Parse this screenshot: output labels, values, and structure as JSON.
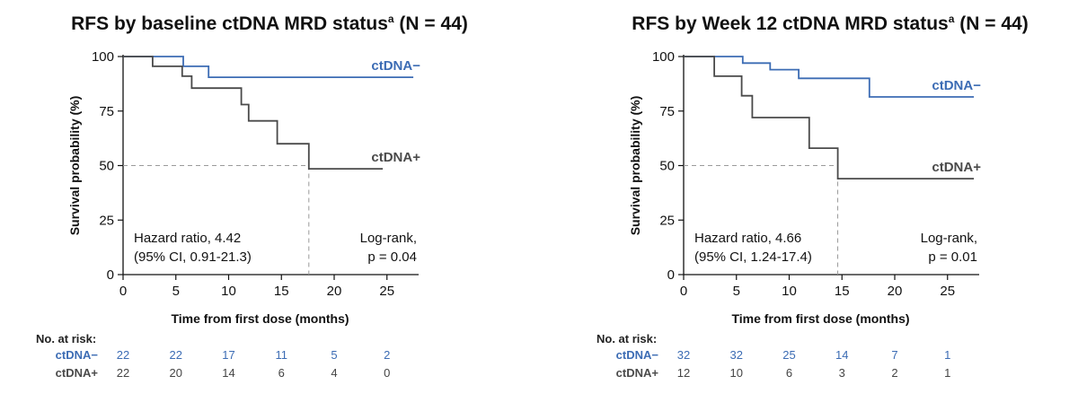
{
  "colors": {
    "ctdna_neg": "#3c6cb4",
    "ctdna_pos": "#4a4a4a",
    "axis": "#111111",
    "reference": "#9a9a9a"
  },
  "chart_data": [
    {
      "type": "line",
      "style": "step",
      "title": "RFS by baseline ctDNA MRD status",
      "title_superscript": "a",
      "title_suffix": " (N = 44)",
      "xlabel": "Time from first dose (months)",
      "ylabel": "Survival probability (%)",
      "xlim": [
        0,
        28
      ],
      "ylim": [
        0,
        100
      ],
      "xticks": [
        0,
        5,
        10,
        15,
        20,
        25
      ],
      "yticks": [
        0,
        25,
        50,
        75,
        100
      ],
      "grid": false,
      "series": [
        {
          "name": "ctDNA−",
          "color_key": "ctdna_neg",
          "x": [
            0,
            5.7,
            8.1,
            27.5
          ],
          "y": [
            100,
            95.5,
            90.5,
            90.5
          ]
        },
        {
          "name": "ctDNA+",
          "color_key": "ctdna_pos",
          "x": [
            0,
            2.8,
            5.6,
            6.5,
            11.2,
            11.9,
            14.6,
            17.6,
            24.6
          ],
          "y": [
            100,
            95.5,
            91,
            85.5,
            78,
            70.5,
            60,
            48.5,
            48.5
          ]
        }
      ],
      "median_reference": {
        "y": 50,
        "x": 17.6
      },
      "annotations": {
        "hazard_ratio": "Hazard ratio, 4.42",
        "ci": "(95% CI, 0.91-21.3)",
        "logrank": "Log-rank,",
        "p_value": "p = 0.04"
      },
      "risk_table": {
        "title": "No. at risk:",
        "times": [
          0,
          5,
          10,
          15,
          20,
          25
        ],
        "rows": [
          {
            "label": "ctDNA−",
            "color_key": "ctdna_neg",
            "values": [
              "22",
              "22",
              "17",
              "11",
              "5",
              "2"
            ]
          },
          {
            "label": "ctDNA+",
            "color_key": "ctdna_pos",
            "values": [
              "22",
              "20",
              "14",
              "6",
              "4",
              "0"
            ]
          }
        ]
      }
    },
    {
      "type": "line",
      "style": "step",
      "title": "RFS by Week 12 ctDNA MRD status",
      "title_superscript": "a",
      "title_suffix": " (N = 44)",
      "xlabel": "Time from first dose (months)",
      "ylabel": "Survival probability (%)",
      "xlim": [
        0,
        28
      ],
      "ylim": [
        0,
        100
      ],
      "xticks": [
        0,
        5,
        10,
        15,
        20,
        25
      ],
      "yticks": [
        0,
        25,
        50,
        75,
        100
      ],
      "grid": false,
      "series": [
        {
          "name": "ctDNA−",
          "color_key": "ctdna_neg",
          "x": [
            0,
            5.6,
            8.2,
            10.9,
            17.6,
            27.5
          ],
          "y": [
            100,
            97,
            94,
            90,
            81.5,
            81.5
          ]
        },
        {
          "name": "ctDNA+",
          "color_key": "ctdna_pos",
          "x": [
            0,
            2.9,
            5.5,
            6.5,
            11.9,
            14.6,
            27.5
          ],
          "y": [
            100,
            91,
            82,
            72,
            58,
            44,
            44
          ]
        }
      ],
      "median_reference": {
        "y": 50,
        "x": 14.6
      },
      "annotations": {
        "hazard_ratio": "Hazard ratio, 4.66",
        "ci": "(95% CI, 1.24-17.4)",
        "logrank": "Log-rank,",
        "p_value": "p = 0.01"
      },
      "risk_table": {
        "title": "No. at risk:",
        "times": [
          0,
          5,
          10,
          15,
          20,
          25
        ],
        "rows": [
          {
            "label": "ctDNA−",
            "color_key": "ctdna_neg",
            "values": [
              "32",
              "32",
              "25",
              "14",
              "7",
              "1"
            ]
          },
          {
            "label": "ctDNA+",
            "color_key": "ctdna_pos",
            "values": [
              "12",
              "10",
              "6",
              "3",
              "2",
              "1"
            ]
          }
        ]
      }
    }
  ]
}
